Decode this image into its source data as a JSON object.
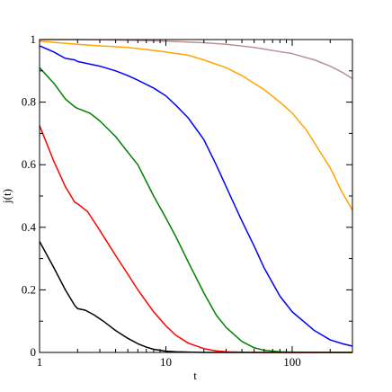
{
  "chart_data": {
    "type": "line",
    "title": "",
    "xlabel": "t",
    "ylabel": "j(t)",
    "xscale": "log",
    "xlim": [
      1,
      300
    ],
    "ylim": [
      0,
      1
    ],
    "xticks": [
      1,
      10,
      100
    ],
    "xtick_labels": [
      "1",
      "10",
      "100"
    ],
    "yticks": [
      0,
      0.2,
      0.4,
      0.6,
      0.8,
      1
    ],
    "ytick_labels": [
      "0",
      "0.2",
      "0.4",
      "0.6",
      "0.8",
      "1"
    ],
    "grid": false,
    "legend": false,
    "series": [
      {
        "color": "#000000",
        "x": [
          1,
          1.3,
          1.6,
          1.9,
          2.0,
          2.3,
          2.7,
          3.2,
          4,
          5,
          6,
          7,
          8,
          10,
          12,
          15,
          20,
          30,
          50,
          100,
          300
        ],
        "y": [
          0.355,
          0.27,
          0.2,
          0.15,
          0.14,
          0.135,
          0.12,
          0.1,
          0.07,
          0.045,
          0.028,
          0.017,
          0.01,
          0.004,
          0.002,
          0.001,
          0,
          0,
          0,
          0,
          0
        ]
      },
      {
        "color": "#ff0000",
        "x": [
          1,
          1.3,
          1.6,
          1.9,
          2.0,
          2.4,
          3,
          4,
          5,
          6,
          8,
          10,
          12,
          15,
          20,
          25,
          30,
          50,
          100,
          300
        ],
        "y": [
          0.725,
          0.61,
          0.53,
          0.48,
          0.475,
          0.45,
          0.39,
          0.31,
          0.25,
          0.2,
          0.13,
          0.085,
          0.055,
          0.03,
          0.012,
          0.005,
          0.002,
          0,
          0,
          0
        ]
      },
      {
        "color": "#008000",
        "x": [
          1,
          1.3,
          1.6,
          1.9,
          2.0,
          2.5,
          3,
          4,
          5,
          6,
          8,
          10,
          12,
          15,
          20,
          25,
          30,
          40,
          50,
          60,
          80,
          100,
          300
        ],
        "y": [
          0.91,
          0.86,
          0.81,
          0.785,
          0.78,
          0.765,
          0.74,
          0.69,
          0.64,
          0.6,
          0.5,
          0.43,
          0.37,
          0.29,
          0.19,
          0.12,
          0.08,
          0.035,
          0.015,
          0.007,
          0.002,
          0.001,
          0
        ]
      },
      {
        "color": "#0000ff",
        "x": [
          1,
          1.3,
          1.6,
          1.9,
          2.0,
          3,
          4,
          5,
          6,
          8,
          10,
          12,
          15,
          20,
          25,
          30,
          40,
          50,
          60,
          80,
          100,
          150,
          200,
          250,
          300
        ],
        "y": [
          0.98,
          0.96,
          0.94,
          0.935,
          0.93,
          0.915,
          0.9,
          0.885,
          0.87,
          0.845,
          0.82,
          0.79,
          0.75,
          0.68,
          0.6,
          0.53,
          0.42,
          0.34,
          0.27,
          0.18,
          0.13,
          0.07,
          0.04,
          0.028,
          0.02
        ]
      },
      {
        "color": "#ffa500",
        "x": [
          1,
          2,
          3,
          5,
          8,
          10,
          15,
          20,
          30,
          40,
          50,
          60,
          80,
          100,
          130,
          150,
          200,
          250,
          300
        ],
        "y": [
          0.995,
          0.985,
          0.98,
          0.975,
          0.965,
          0.96,
          0.95,
          0.935,
          0.91,
          0.885,
          0.86,
          0.84,
          0.8,
          0.765,
          0.71,
          0.67,
          0.59,
          0.51,
          0.455
        ]
      },
      {
        "color": "#bc8f8f",
        "x": [
          1,
          2,
          5,
          10,
          20,
          30,
          50,
          70,
          100,
          150,
          200,
          250,
          300
        ],
        "y": [
          1.0,
          1.0,
          0.998,
          0.995,
          0.99,
          0.985,
          0.975,
          0.965,
          0.955,
          0.935,
          0.915,
          0.895,
          0.875
        ]
      }
    ]
  }
}
